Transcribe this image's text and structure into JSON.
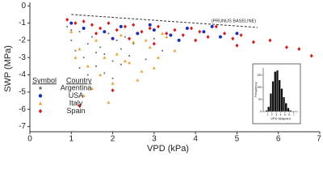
{
  "chart_data": [
    {
      "type": "scatter",
      "xlabel": "VPD (kPa)",
      "ylabel": "SWP (MPa)",
      "xlim": [
        0,
        7
      ],
      "ylim": [
        -7.3,
        0.2
      ],
      "xticks": [
        0,
        1,
        2,
        3,
        4,
        5,
        6,
        7
      ],
      "yticks": [
        -7,
        -6,
        -5,
        -4,
        -3,
        -2,
        -1,
        0
      ],
      "legend_headers": [
        "Symbol",
        "Country"
      ],
      "baseline": {
        "label": "(PRUNUS BASELINE)",
        "x": [
          1,
          5.5
        ],
        "y": [
          -0.5,
          -1.25
        ]
      },
      "series": [
        {
          "name": "Argentina",
          "color": "#6b6b6b",
          "marker": "square",
          "x": [
            0.9,
            1.0,
            1.1,
            1.2,
            1.3,
            1.4,
            1.5,
            1.6,
            1.7,
            1.8,
            1.9,
            2.0,
            2.1,
            2.2,
            2.3,
            2.4,
            1.2,
            1.4,
            1.6,
            1.8,
            2.0,
            2.2,
            1.0,
            1.5,
            2.5,
            3.0,
            3.2,
            2.8
          ],
          "values": [
            -1.2,
            -2.0,
            -2.6,
            -1.5,
            -3.0,
            -2.2,
            -1.8,
            -3.5,
            -2.4,
            -2.8,
            -1.6,
            -3.2,
            -2.0,
            -2.5,
            -1.8,
            -2.9,
            -3.6,
            -4.0,
            -2.7,
            -3.9,
            -4.2,
            -3.4,
            -1.4,
            -1.1,
            -2.2,
            -1.9,
            -2.6,
            -3.1
          ]
        },
        {
          "name": "USA",
          "color": "#1a2fc0",
          "marker": "circle",
          "x": [
            1.0,
            1.3,
            1.8,
            2.2,
            2.6,
            3.0,
            3.4,
            3.8,
            4.2,
            4.6,
            5.0,
            2.0,
            2.9,
            3.6,
            4.4
          ],
          "values": [
            -1.0,
            -1.3,
            -1.5,
            -1.2,
            -1.6,
            -1.4,
            -1.7,
            -1.3,
            -1.5,
            -1.8,
            -1.6,
            -1.9,
            -1.1,
            -2.0,
            -1.2
          ]
        },
        {
          "name": "Italy",
          "color": "#f0a030",
          "marker": "triangle",
          "x": [
            1.0,
            1.2,
            1.4,
            1.5,
            1.6,
            1.8,
            2.0,
            2.1,
            2.3,
            2.5,
            2.7,
            2.9,
            3.1,
            3.3,
            3.5,
            1.3,
            1.7,
            2.2,
            2.6,
            3.0,
            1.9,
            2.4,
            2.8,
            3.2,
            1.1
          ],
          "values": [
            -1.5,
            -2.5,
            -3.5,
            -4.8,
            -2.0,
            -3.0,
            -4.5,
            -2.8,
            -3.2,
            -2.1,
            -3.8,
            -2.4,
            -3.0,
            -1.8,
            -2.6,
            -5.2,
            -4.0,
            -1.7,
            -4.3,
            -3.6,
            -5.6,
            -3.3,
            -2.0,
            -1.6,
            -3.0
          ]
        },
        {
          "name": "Spain",
          "color": "#e01515",
          "marker": "diamond",
          "x": [
            0.9,
            1.1,
            1.3,
            1.5,
            1.7,
            1.9,
            2.1,
            2.3,
            2.5,
            2.7,
            2.9,
            3.1,
            3.3,
            3.5,
            3.7,
            3.9,
            4.1,
            4.3,
            4.5,
            4.7,
            4.9,
            5.1,
            5.4,
            5.8,
            6.2,
            6.5,
            6.8,
            1.6,
            2.4,
            3.0,
            4.0,
            5.0,
            1.2,
            2.0
          ],
          "values": [
            -0.8,
            -1.0,
            -0.9,
            -1.1,
            -1.3,
            -1.0,
            -1.4,
            -1.2,
            -1.1,
            -1.5,
            -1.3,
            -1.2,
            -1.6,
            -1.4,
            -1.7,
            -1.3,
            -1.5,
            -1.8,
            -1.2,
            -1.6,
            -1.9,
            -1.7,
            -2.1,
            -2.0,
            -2.4,
            -2.5,
            -2.9,
            -1.6,
            -1.9,
            -2.2,
            -2.0,
            -2.3,
            -5.8,
            -4.9
          ]
        }
      ]
    },
    {
      "type": "histogram",
      "xlabel": "VPD Midpoint",
      "ylabel": "Frequency",
      "color": "#111111",
      "bins": [
        0.5,
        1.0,
        1.5,
        2.0,
        2.5,
        3.0,
        3.5,
        4.0,
        4.5,
        5.0,
        5.5,
        6.0,
        6.5
      ],
      "values": [
        5,
        20,
        75,
        125,
        165,
        170,
        130,
        95,
        60,
        35,
        15,
        5
      ],
      "xlim": [
        0,
        8
      ],
      "ylim": [
        0,
        180
      ],
      "xticks": [
        1,
        2,
        3,
        4,
        5,
        6,
        7
      ],
      "yticks": [
        0,
        50,
        100,
        150
      ]
    }
  ]
}
